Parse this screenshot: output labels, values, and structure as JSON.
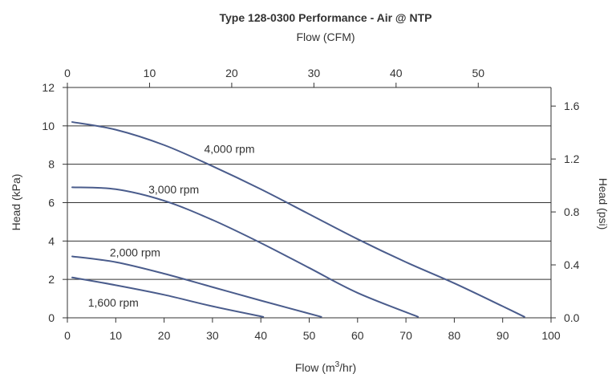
{
  "chart_data": {
    "type": "line",
    "title": "Type 128-0300 Performance - Air @ NTP",
    "top_axis": {
      "label": "Flow (CFM)",
      "ticks": [
        0,
        10,
        20,
        30,
        40,
        50
      ],
      "range": [
        0,
        58.8571
      ]
    },
    "x_axis": {
      "label_main": "Flow (m",
      "label_sup": "3",
      "label_end": "/hr)",
      "ticks": [
        0,
        10,
        20,
        30,
        40,
        50,
        60,
        70,
        80,
        90,
        100
      ],
      "range": [
        0,
        100
      ]
    },
    "y_axis": {
      "label": "Head (kPa)",
      "ticks": [
        0,
        2,
        4,
        6,
        8,
        10,
        12
      ],
      "range": [
        0,
        12
      ]
    },
    "y2_axis": {
      "label": "Head (psi)",
      "ticks": [
        "0.0",
        "0.4",
        "0.8",
        "1.2",
        "1.6"
      ],
      "tick_values": [
        0,
        0.4,
        0.8,
        1.2,
        1.6
      ],
      "range": [
        0,
        1.7405
      ]
    },
    "grid": "horizontal",
    "series": [
      {
        "name": "4,000 rpm",
        "color": "#4a5c8c",
        "x": [
          1,
          10,
          20,
          30,
          40,
          50,
          60,
          70,
          80,
          90,
          94.5
        ],
        "y": [
          10.2,
          9.8,
          9.0,
          7.9,
          6.7,
          5.4,
          4.1,
          2.9,
          1.8,
          0.6,
          0.05
        ]
      },
      {
        "name": "3,000 rpm",
        "color": "#4a5c8c",
        "x": [
          1,
          10,
          20,
          30,
          40,
          50,
          60,
          72.5
        ],
        "y": [
          6.8,
          6.7,
          6.1,
          5.1,
          3.9,
          2.6,
          1.3,
          0.05
        ]
      },
      {
        "name": "2,000 rpm",
        "color": "#4a5c8c",
        "x": [
          1,
          10,
          20,
          30,
          40,
          52.5
        ],
        "y": [
          3.2,
          2.9,
          2.3,
          1.6,
          0.9,
          0.05
        ]
      },
      {
        "name": "1,600 rpm",
        "color": "#4a5c8c",
        "x": [
          1,
          10,
          20,
          30,
          40.5
        ],
        "y": [
          2.1,
          1.7,
          1.2,
          0.6,
          0.05
        ]
      }
    ],
    "annotations": [
      {
        "text": "4,000 rpm",
        "x": 33.5,
        "y": 8.8
      },
      {
        "text": "3,000 rpm",
        "x": 22,
        "y": 6.7
      },
      {
        "text": "2,000 rpm",
        "x": 14,
        "y": 3.4
      },
      {
        "text": "1,600 rpm",
        "x": 9.5,
        "y": 0.8
      }
    ]
  }
}
